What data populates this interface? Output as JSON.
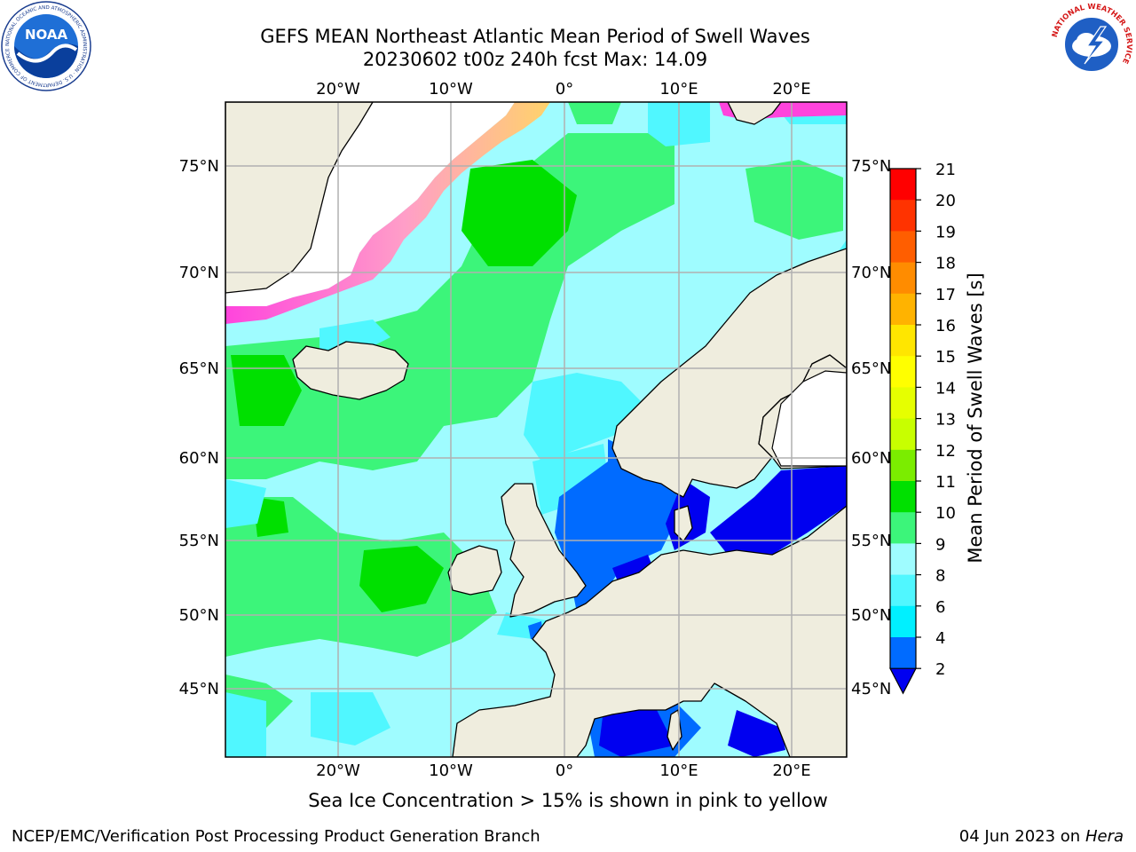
{
  "title": {
    "line1": "GEFS MEAN Northeast Atlantic Mean Period of Swell Waves",
    "line2": "20230602 t00z 240h fcst   Max: 14.09"
  },
  "map": {
    "lon_ticks": [
      "20°W",
      "10°W",
      "0°",
      "10°E",
      "20°E"
    ],
    "lat_ticks": [
      "75°N",
      "70°N",
      "65°N",
      "60°N",
      "55°N",
      "50°N",
      "45°N"
    ],
    "ocean_color": "#9ffcff",
    "land_color": "#efedde",
    "grid_color": "#b0b0b0"
  },
  "colorbar": {
    "label": "Mean Period of Swell Waves [s]",
    "ticks": [
      "21",
      "20",
      "19",
      "18",
      "17",
      "16",
      "15",
      "14",
      "13",
      "12",
      "11",
      "10",
      "9",
      "8",
      "6",
      "4",
      "2"
    ],
    "colors": [
      "#ff0000",
      "#ff3300",
      "#ff5e00",
      "#ff8c00",
      "#ffb300",
      "#ffe600",
      "#ffff00",
      "#e6ff00",
      "#c8ff00",
      "#7bed00",
      "#00e000",
      "#3cf57a",
      "#9ffcff",
      "#50f7ff",
      "#00f0ff",
      "#006bff",
      "#0000f0"
    ]
  },
  "notes": {
    "ice": "Sea Ice Concentration > 15% is shown in pink to yellow",
    "footer_left": "NCEP/EMC/Verification Post Processing Product Generation Branch",
    "footer_date": "04 Jun 2023 on",
    "footer_machine": "Hera"
  },
  "logos": {
    "noaa_text": "NOAA",
    "noaa_ring": "NATIONAL OCEANIC AND ATMOSPHERIC ADMINISTRATION · U.S. DEPARTMENT OF COMMERCE",
    "nws_ring": "NATIONAL WEATHER SERVICE"
  }
}
